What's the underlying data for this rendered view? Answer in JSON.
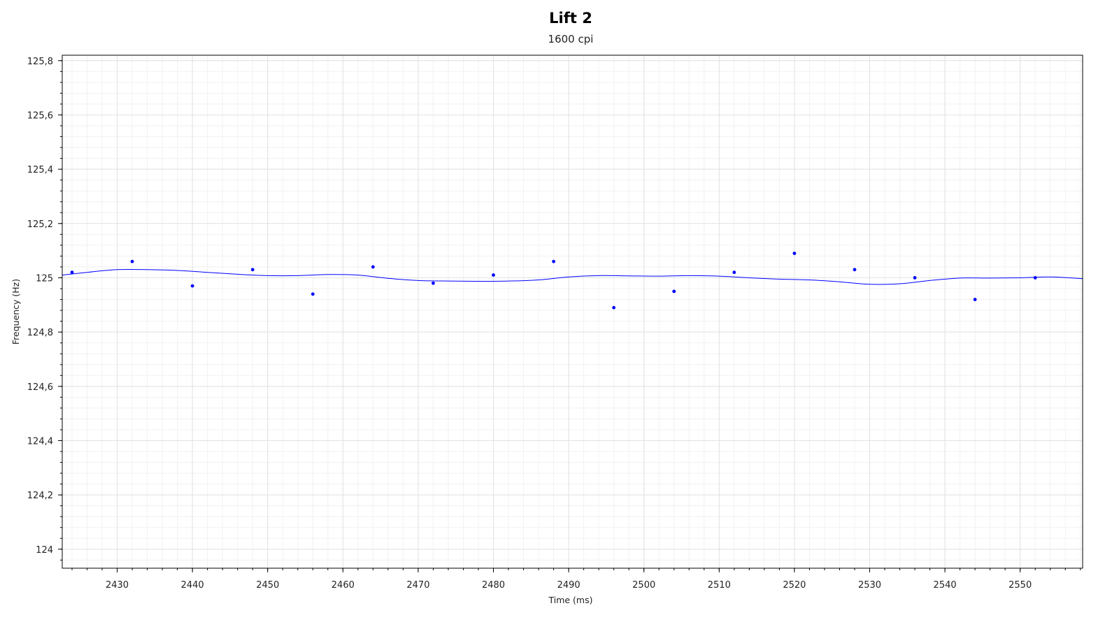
{
  "chart_data": {
    "type": "scatter",
    "title": "Lift 2",
    "subtitle": "1600 cpi",
    "xlabel": "Time (ms)",
    "ylabel": "Frequency (Hz)",
    "xlim": [
      2422.7,
      2558.3
    ],
    "ylim": [
      123.93,
      125.82
    ],
    "x_ticks": [
      2430,
      2440,
      2450,
      2460,
      2470,
      2480,
      2490,
      2500,
      2510,
      2520,
      2530,
      2540,
      2550
    ],
    "x_tick_labels": [
      "2430",
      "2440",
      "2450",
      "2460",
      "2470",
      "2480",
      "2490",
      "2500",
      "2510",
      "2520",
      "2530",
      "2540",
      "2550"
    ],
    "y_ticks": [
      124.0,
      124.2,
      124.4,
      124.6,
      124.8,
      125.0,
      125.2,
      125.4,
      125.6,
      125.8
    ],
    "y_tick_labels": [
      "124",
      "124,2",
      "124,4",
      "124,6",
      "124,8",
      "125",
      "125,2",
      "125,4",
      "125,6",
      "125,8"
    ],
    "grid": true,
    "color": "#0000ff",
    "series": [
      {
        "type": "scatter",
        "x": [
          2424,
          2432,
          2440,
          2448,
          2456,
          2464,
          2472,
          2480,
          2488,
          2496,
          2504,
          2512,
          2520,
          2528,
          2536,
          2544,
          2552
        ],
        "y": [
          125.02,
          125.06,
          124.97,
          125.03,
          124.94,
          125.04,
          124.98,
          125.01,
          125.06,
          124.89,
          124.95,
          125.02,
          125.09,
          125.03,
          125.0,
          124.92,
          125.0
        ]
      },
      {
        "type": "line",
        "x": [
          2422.7,
          2426,
          2430,
          2434,
          2438,
          2442,
          2446,
          2450,
          2454,
          2458,
          2462,
          2466,
          2470,
          2474,
          2478,
          2482,
          2486,
          2490,
          2494,
          2498,
          2502,
          2506,
          2510,
          2514,
          2518,
          2522,
          2526,
          2530,
          2534,
          2538,
          2542,
          2546,
          2550,
          2554,
          2558.3
        ],
        "y": [
          125.01,
          125.02,
          125.03,
          125.03,
          125.027,
          125.02,
          125.013,
          125.008,
          125.008,
          125.012,
          125.01,
          124.998,
          124.99,
          124.988,
          124.987,
          124.988,
          124.992,
          125.003,
          125.008,
          125.007,
          125.006,
          125.008,
          125.006,
          125.0,
          124.995,
          124.992,
          124.985,
          124.976,
          124.978,
          124.99,
          124.999,
          124.999,
          125.0,
          125.003,
          124.997
        ]
      }
    ]
  }
}
